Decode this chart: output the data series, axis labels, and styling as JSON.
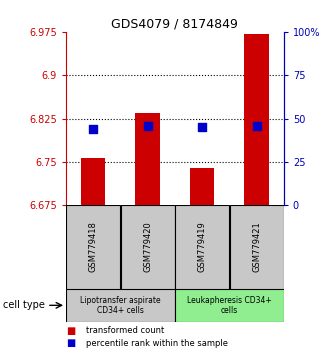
{
  "title": "GDS4079 / 8174849",
  "samples": [
    "GSM779418",
    "GSM779420",
    "GSM779419",
    "GSM779421"
  ],
  "bar_values": [
    6.757,
    6.835,
    6.74,
    6.972
  ],
  "bar_base": 6.675,
  "percentile_values": [
    44,
    46,
    45,
    46
  ],
  "ylim_left": [
    6.675,
    6.975
  ],
  "ylim_right": [
    0,
    100
  ],
  "yticks_left": [
    6.675,
    6.75,
    6.825,
    6.9,
    6.975
  ],
  "ytick_labels_left": [
    "6.675",
    "6.75",
    "6.825",
    "6.9",
    "6.975"
  ],
  "yticks_right": [
    0,
    25,
    50,
    75,
    100
  ],
  "ytick_labels_right": [
    "0",
    "25",
    "50",
    "75",
    "100%"
  ],
  "hlines": [
    6.75,
    6.825,
    6.9
  ],
  "bar_color": "#cc0000",
  "dot_color": "#0000cc",
  "bar_width": 0.45,
  "dot_size": 40,
  "group_labels": [
    "Lipotransfer aspirate\nCD34+ cells",
    "Leukapheresis CD34+\ncells"
  ],
  "group_ranges": [
    [
      0,
      1
    ],
    [
      2,
      3
    ]
  ],
  "group_bg_colors": [
    "#c8c8c8",
    "#90ee90"
  ],
  "sample_bg_color": "#c8c8c8",
  "legend_items": [
    "transformed count",
    "percentile rank within the sample"
  ],
  "left_color": "#cc0000",
  "right_color": "#0000bb"
}
